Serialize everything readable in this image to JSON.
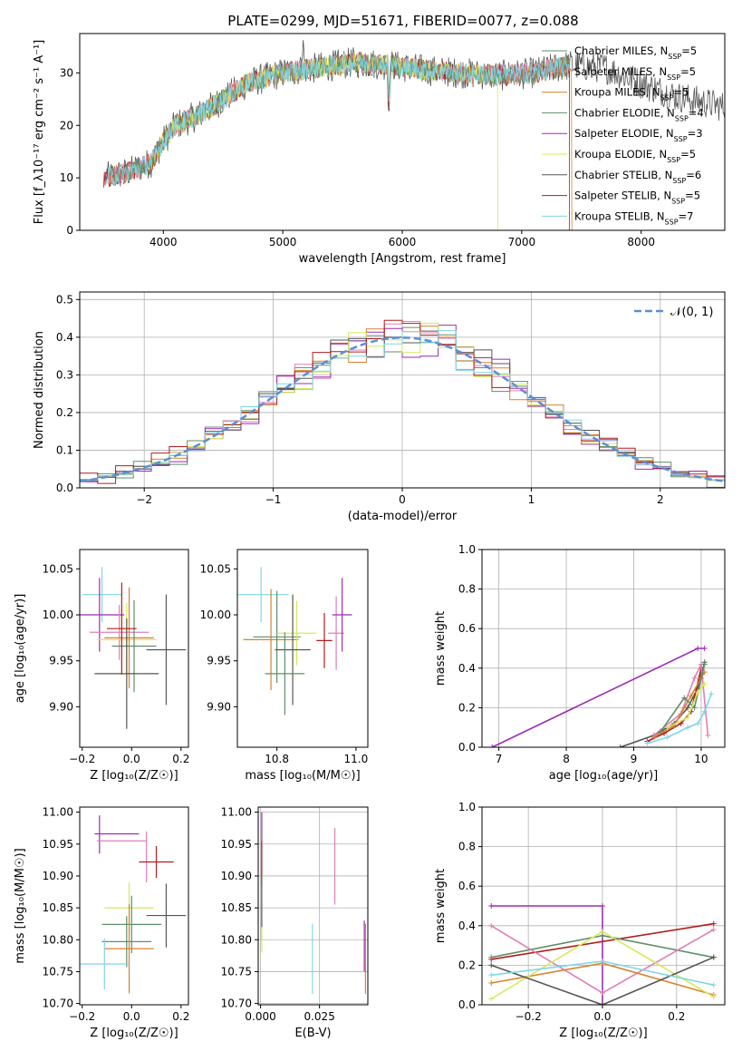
{
  "figure_title": "PLATE=0299, MJD=51671, FIBERID=0077, z=0.088",
  "colors": {
    "Chabrier MILES": "#5f8f68",
    "Salpeter MILES": "#e07fb5",
    "Kroupa MILES": "#d9822b",
    "Chabrier ELODIE": "#5f8f68",
    "Salpeter ELODIE": "#9b2cb5",
    "Kroupa ELODIE": "#d6e85a",
    "Chabrier STELIB": "#555555",
    "Salpeter STELIB": "#b01d1d",
    "Kroupa STELIB": "#7fd6e8"
  },
  "chart_data": [
    {
      "id": "spectrum",
      "type": "line",
      "title": "PLATE=0299, MJD=51671, FIBERID=0077, z=0.088",
      "xlabel": "wavelength [Angstrom, rest frame]",
      "ylabel": "Flux [f_λ10⁻¹⁷ erg cm⁻² s⁻¹ A⁻¹]",
      "xlim": [
        3300,
        8700
      ],
      "ylim": [
        0,
        37.5
      ],
      "xticks": [
        "4000",
        "5000",
        "6000",
        "7000",
        "8000"
      ],
      "yticks": [
        "0",
        "10",
        "20",
        "30"
      ],
      "grid": false,
      "legend_position": "top-right",
      "legend": [
        {
          "label": "Chabrier MILES, N",
          "sub": "SSP",
          "tail": "=5"
        },
        {
          "label": "Salpeter MILES, N",
          "sub": "SSP",
          "tail": "=5"
        },
        {
          "label": "Kroupa MILES, N",
          "sub": "SSP",
          "tail": "=5"
        },
        {
          "label": "Chabrier ELODIE, N",
          "sub": "SSP",
          "tail": "=4"
        },
        {
          "label": "Salpeter ELODIE, N",
          "sub": "SSP",
          "tail": "=3"
        },
        {
          "label": "Kroupa ELODIE, N",
          "sub": "SSP",
          "tail": "=5"
        },
        {
          "label": "Chabrier STELIB, N",
          "sub": "SSP",
          "tail": "=6"
        },
        {
          "label": "Salpeter STELIB, N",
          "sub": "SSP",
          "tail": "=5"
        },
        {
          "label": "Kroupa STELIB, N",
          "sub": "SSP",
          "tail": "=7"
        }
      ],
      "continuum": {
        "x": [
          3500,
          3700,
          3900,
          4000,
          4100,
          4300,
          4500,
          4700,
          5000,
          5300,
          5600,
          5900,
          6200,
          6500,
          6800,
          7100,
          7400,
          7700,
          8000,
          8300,
          8700
        ],
        "y": [
          10,
          11,
          13,
          17,
          20,
          22,
          25,
          28,
          30,
          31,
          32,
          31.5,
          30.5,
          30,
          29.5,
          30,
          31.5,
          31,
          28,
          25.5,
          23.5
        ]
      }
    },
    {
      "id": "residuals",
      "type": "line",
      "xlabel": "(data-model)/error",
      "ylabel": "Normed distribution",
      "xlim": [
        -2.5,
        2.5
      ],
      "ylim": [
        0,
        0.52
      ],
      "xticks": [
        "−2",
        "−1",
        "0",
        "1",
        "2"
      ],
      "yticks": [
        "0.0",
        "0.1",
        "0.2",
        "0.3",
        "0.4",
        "0.5"
      ],
      "grid": true,
      "legend_position": "top-right",
      "legend_label": "𝒩(0, 1)"
    },
    {
      "id": "age_vs_Z",
      "type": "scatter",
      "xlabel": "Z [log₁₀(Z/Z☉)]",
      "ylabel": "age  [log₁₀(age/yr)]",
      "xlim": [
        -0.21,
        0.23
      ],
      "ylim": [
        9.856,
        10.071
      ],
      "xticks": [
        "−0.2",
        "0.0",
        "0.2"
      ],
      "yticks": [
        "9.90",
        "9.95",
        "10.00",
        "10.05"
      ],
      "grid": false,
      "points": [
        {
          "x": -0.12,
          "xerr": 0.08,
          "y": 10.022,
          "yerr": 0.03,
          "c": "Kroupa STELIB"
        },
        {
          "x": -0.13,
          "xerr": 0.1,
          "y": 10.0,
          "yerr": 0.04,
          "c": "Salpeter ELODIE"
        },
        {
          "x": -0.05,
          "xerr": 0.12,
          "y": 9.981,
          "yerr": 0.03,
          "c": "Salpeter MILES"
        },
        {
          "x": -0.02,
          "xerr": 0.12,
          "y": 9.973,
          "yerr": 0.04,
          "c": "Kroupa ELODIE"
        },
        {
          "x": -0.01,
          "xerr": 0.1,
          "y": 9.975,
          "yerr": 0.055,
          "c": "Kroupa MILES"
        },
        {
          "x": 0.01,
          "xerr": 0.09,
          "y": 9.966,
          "yerr": 0.05,
          "c": "Chabrier MILES"
        },
        {
          "x": -0.02,
          "xerr": 0.13,
          "y": 9.936,
          "yerr": 0.06,
          "c": "Chabrier STELIB"
        },
        {
          "x": 0.14,
          "xerr": 0.08,
          "y": 9.962,
          "yerr": 0.06,
          "c": "Chabrier STELIB"
        },
        {
          "x": -0.04,
          "xerr": 0.06,
          "y": 9.985,
          "yerr": 0.05,
          "c": "Salpeter STELIB"
        }
      ]
    },
    {
      "id": "age_vs_mass",
      "type": "scatter",
      "xlabel": "mass [log₁₀(M/M☉)]",
      "ylabel": "",
      "xlim": [
        10.7,
        11.03
      ],
      "ylim": [
        9.856,
        10.071
      ],
      "xticks": [
        "10.8",
        "11.0"
      ],
      "yticks": [
        "9.90",
        "9.95",
        "10.00",
        "10.05"
      ],
      "grid": false,
      "points": [
        {
          "x": 10.76,
          "xerr": 0.07,
          "y": 10.022,
          "yerr": 0.03,
          "c": "Kroupa STELIB"
        },
        {
          "x": 10.785,
          "xerr": 0.07,
          "y": 9.973,
          "yerr": 0.055,
          "c": "Kroupa MILES"
        },
        {
          "x": 10.8,
          "xerr": 0.06,
          "y": 9.976,
          "yerr": 0.05,
          "c": "Chabrier ELODIE"
        },
        {
          "x": 10.85,
          "xerr": 0.05,
          "y": 9.98,
          "yerr": 0.035,
          "c": "Kroupa ELODIE"
        },
        {
          "x": 10.84,
          "xerr": 0.045,
          "y": 9.962,
          "yerr": 0.06,
          "c": "Chabrier STELIB"
        },
        {
          "x": 10.82,
          "xerr": 0.05,
          "y": 9.936,
          "yerr": 0.045,
          "c": "Chabrier MILES"
        },
        {
          "x": 10.92,
          "xerr": 0.02,
          "y": 9.972,
          "yerr": 0.03,
          "c": "Salpeter STELIB"
        },
        {
          "x": 10.95,
          "xerr": 0.02,
          "y": 9.98,
          "yerr": 0.04,
          "c": "Salpeter MILES"
        },
        {
          "x": 10.965,
          "xerr": 0.025,
          "y": 10.0,
          "yerr": 0.04,
          "c": "Salpeter ELODIE"
        }
      ]
    },
    {
      "id": "weights_vs_age",
      "type": "line",
      "xlabel": "age  [log₁₀(age/yr)]",
      "ylabel": "mass weight",
      "xlim": [
        6.75,
        10.35
      ],
      "ylim": [
        0,
        1.0
      ],
      "xticks": [
        "7",
        "8",
        "9",
        "10"
      ],
      "yticks": [
        "0.0",
        "0.2",
        "0.4",
        "0.6",
        "0.8",
        "1.0"
      ],
      "grid": true,
      "series": [
        {
          "c": "Salpeter ELODIE",
          "x": [
            6.9,
            9.95,
            10.05
          ],
          "y": [
            0.0,
            0.5,
            0.5
          ]
        },
        {
          "c": "Chabrier STELIB",
          "x": [
            8.8,
            9.3,
            9.6,
            9.8,
            9.95,
            10.05
          ],
          "y": [
            0.0,
            0.06,
            0.12,
            0.2,
            0.3,
            0.43
          ]
        },
        {
          "c": "Salpeter STELIB",
          "x": [
            9.2,
            9.45,
            9.7,
            9.85,
            10.0
          ],
          "y": [
            0.03,
            0.07,
            0.12,
            0.18,
            0.4
          ]
        },
        {
          "c": "Salpeter MILES",
          "x": [
            9.3,
            9.7,
            9.9,
            10.0,
            10.1
          ],
          "y": [
            0.06,
            0.17,
            0.35,
            0.42,
            0.06
          ]
        },
        {
          "c": "Kroupa MILES",
          "x": [
            9.3,
            9.6,
            9.85,
            10.0,
            10.05
          ],
          "y": [
            0.05,
            0.11,
            0.26,
            0.35,
            0.38
          ]
        },
        {
          "c": "Chabrier MILES",
          "x": [
            9.4,
            9.75,
            9.9,
            10.05
          ],
          "y": [
            0.08,
            0.25,
            0.2,
            0.42
          ]
        },
        {
          "c": "Kroupa ELODIE",
          "x": [
            9.5,
            9.8,
            9.95,
            10.05
          ],
          "y": [
            0.1,
            0.15,
            0.28,
            0.32
          ]
        },
        {
          "c": "Kroupa STELIB",
          "x": [
            9.2,
            9.5,
            9.8,
            9.95,
            10.05,
            10.15
          ],
          "y": [
            0.02,
            0.05,
            0.1,
            0.12,
            0.18,
            0.27
          ]
        }
      ]
    },
    {
      "id": "mass_vs_Z",
      "type": "scatter",
      "xlabel": "Z [log₁₀(Z/Z☉)]",
      "ylabel": "mass [log₁₀(M/M☉)]",
      "xlim": [
        -0.21,
        0.23
      ],
      "ylim": [
        10.698,
        11.008
      ],
      "xticks": [
        "−0.2",
        "0.0",
        "0.2"
      ],
      "yticks": [
        "10.70",
        "10.75",
        "10.80",
        "10.85",
        "10.90",
        "10.95",
        "11.00"
      ],
      "grid": false,
      "points": [
        {
          "x": -0.13,
          "xerr": 0.0,
          "y": 10.965,
          "yerr": 0.03,
          "c": "Salpeter ELODIE"
        },
        {
          "x": -0.06,
          "xerr": 0.09,
          "y": 10.966,
          "yerr": 0.0,
          "c": "Salpeter ELODIE"
        },
        {
          "x": -0.04,
          "xerr": 0.1,
          "y": 10.955,
          "yerr": 0.0,
          "c": "Salpeter MILES"
        },
        {
          "x": 0.06,
          "xerr": 0.0,
          "y": 10.93,
          "yerr": 0.04,
          "c": "Salpeter MILES"
        },
        {
          "x": 0.1,
          "xerr": 0.07,
          "y": 10.922,
          "yerr": 0.025,
          "c": "Salpeter STELIB"
        },
        {
          "x": -0.01,
          "xerr": 0.1,
          "y": 10.85,
          "yerr": 0.04,
          "c": "Kroupa ELODIE"
        },
        {
          "x": 0.14,
          "xerr": 0.08,
          "y": 10.838,
          "yerr": 0.05,
          "c": "Chabrier STELIB"
        },
        {
          "x": 0.0,
          "xerr": 0.12,
          "y": 10.824,
          "yerr": 0.045,
          "c": "Chabrier MILES"
        },
        {
          "x": -0.02,
          "xerr": 0.1,
          "y": 10.797,
          "yerr": 0.04,
          "c": "Chabrier ELODIE"
        },
        {
          "x": -0.01,
          "xerr": 0.1,
          "y": 10.786,
          "yerr": 0.07,
          "c": "Kroupa MILES"
        },
        {
          "x": -0.11,
          "xerr": 0.1,
          "y": 10.762,
          "yerr": 0.04,
          "c": "Kroupa STELIB"
        }
      ]
    },
    {
      "id": "mass_vs_ebv",
      "type": "scatter",
      "xlabel": "E(B-V)",
      "ylabel": "",
      "xlim": [
        -0.001,
        0.0455
      ],
      "ylim": [
        10.698,
        11.008
      ],
      "xticks": [
        "0.000",
        "0.025"
      ],
      "yticks": [
        "10.70",
        "10.75",
        "10.80",
        "10.85",
        "10.90",
        "10.95",
        "11.00"
      ],
      "grid": true,
      "points": [
        {
          "x": 0.0005,
          "y": 10.95,
          "yerr": 0.05,
          "c": "Salpeter ELODIE"
        },
        {
          "x": 0.0005,
          "y": 10.92,
          "yerr": 0.035,
          "c": "Salpeter STELIB"
        },
        {
          "x": 0.0005,
          "y": 10.85,
          "yerr": 0.05,
          "c": "Chabrier STELIB"
        },
        {
          "x": 0.0005,
          "y": 10.8,
          "yerr": 0.02,
          "c": "Kroupa ELODIE"
        },
        {
          "x": 0.022,
          "y": 10.77,
          "yerr": 0.055,
          "c": "Kroupa STELIB"
        },
        {
          "x": 0.0315,
          "y": 10.915,
          "yerr": 0.06,
          "c": "Salpeter MILES"
        },
        {
          "x": 0.044,
          "y": 10.79,
          "yerr": 0.04,
          "c": "Salpeter ELODIE"
        },
        {
          "x": 0.0445,
          "y": 10.77,
          "yerr": 0.055,
          "c": "Kroupa MILES"
        }
      ]
    },
    {
      "id": "weights_vs_Z",
      "type": "line",
      "xlabel": "Z [log₁₀(Z/Z☉)]",
      "ylabel": "mass weight",
      "xlim": [
        -0.325,
        0.33
      ],
      "ylim": [
        0,
        1.0
      ],
      "xticks": [
        "−0.2",
        "0.0",
        "0.2"
      ],
      "yticks": [
        "0.0",
        "0.2",
        "0.4",
        "0.6",
        "0.8",
        "1.0"
      ],
      "grid": true,
      "series": [
        {
          "c": "Salpeter ELODIE",
          "x": [
            -0.3,
            0.0,
            0.0
          ],
          "y": [
            0.5,
            0.5,
            0.0
          ]
        },
        {
          "c": "Salpeter STELIB",
          "x": [
            -0.3,
            0.3
          ],
          "y": [
            0.23,
            0.41
          ]
        },
        {
          "c": "Chabrier MILES",
          "x": [
            -0.3,
            0.0,
            0.3
          ],
          "y": [
            0.24,
            0.35,
            0.24
          ]
        },
        {
          "c": "Salpeter MILES",
          "x": [
            -0.3,
            0.0,
            0.3
          ],
          "y": [
            0.4,
            0.06,
            0.38
          ]
        },
        {
          "c": "Kroupa MILES",
          "x": [
            -0.3,
            0.0,
            0.3
          ],
          "y": [
            0.11,
            0.21,
            0.05
          ]
        },
        {
          "c": "Kroupa ELODIE",
          "x": [
            -0.3,
            0.0,
            0.3
          ],
          "y": [
            0.03,
            0.37,
            0.04
          ]
        },
        {
          "c": "Chabrier STELIB",
          "x": [
            -0.3,
            0.0,
            0.3
          ],
          "y": [
            0.2,
            0.0,
            0.24
          ]
        },
        {
          "c": "Kroupa STELIB",
          "x": [
            -0.3,
            0.0,
            0.3
          ],
          "y": [
            0.15,
            0.22,
            0.1
          ]
        }
      ]
    }
  ]
}
